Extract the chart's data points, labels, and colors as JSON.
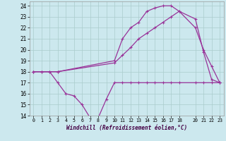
{
  "xlabel": "Windchill (Refroidissement éolien,°C)",
  "background_color": "#cce8ee",
  "grid_color": "#aacccc",
  "line_color": "#993399",
  "xlim": [
    -0.5,
    23.5
  ],
  "ylim": [
    14,
    24.4
  ],
  "xticks": [
    0,
    1,
    2,
    3,
    4,
    5,
    6,
    7,
    8,
    9,
    10,
    11,
    12,
    13,
    14,
    15,
    16,
    17,
    18,
    20,
    21,
    22,
    23
  ],
  "yticks": [
    14,
    15,
    16,
    17,
    18,
    19,
    20,
    21,
    22,
    23,
    24
  ],
  "line1_x": [
    0,
    1,
    2,
    3,
    4,
    5,
    6,
    7,
    8,
    9,
    10,
    11,
    12,
    13,
    14,
    15,
    16,
    17,
    18,
    20,
    21,
    22,
    23
  ],
  "line1_y": [
    18,
    18,
    18,
    17,
    16,
    15.8,
    15,
    13.8,
    13.8,
    15.5,
    17,
    17,
    17,
    17,
    17,
    17,
    17,
    17,
    17,
    17,
    17,
    17,
    17
  ],
  "line2_x": [
    0,
    1,
    2,
    3,
    10,
    11,
    12,
    13,
    14,
    15,
    16,
    17,
    18,
    20,
    21,
    22,
    23
  ],
  "line2_y": [
    18,
    18,
    18,
    18,
    19,
    21,
    22,
    22.5,
    23.5,
    23.8,
    24,
    24,
    23.5,
    22,
    20,
    18.5,
    17
  ],
  "line3_x": [
    0,
    3,
    10,
    11,
    12,
    13,
    14,
    15,
    16,
    17,
    18,
    20,
    21,
    22,
    23
  ],
  "line3_y": [
    18,
    18,
    18.8,
    19.5,
    20.2,
    21,
    21.5,
    22,
    22.5,
    23,
    23.5,
    22.8,
    19.8,
    17.3,
    17
  ]
}
